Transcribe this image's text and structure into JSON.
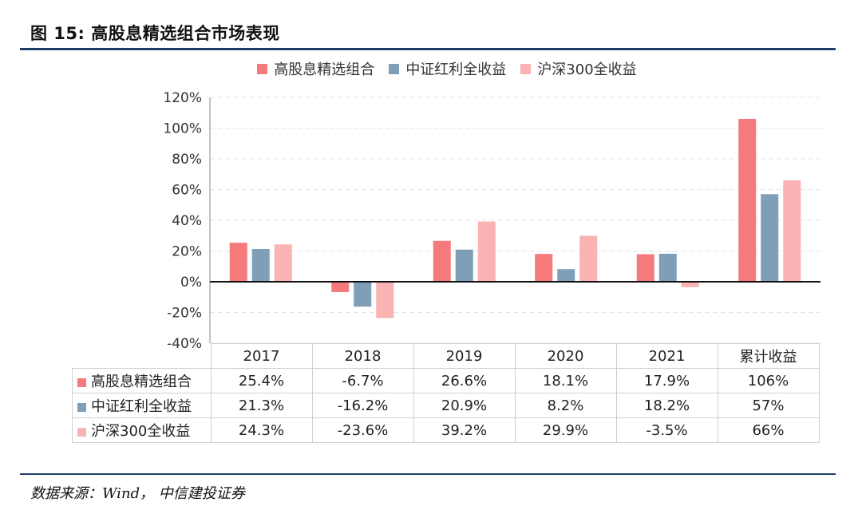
{
  "figure": {
    "title": "图 15:  高股息精选组合市场表现",
    "source": "数据来源：Wind，  中信建投证券"
  },
  "colors": {
    "series_1": "#f47a7c",
    "series_2": "#7f9fb8",
    "series_3": "#f8b3b2",
    "rule": "#1f3f66"
  },
  "chart_data": {
    "type": "bar",
    "categories": [
      "2017",
      "2018",
      "2019",
      "2020",
      "2021",
      "累计收益"
    ],
    "series": [
      {
        "name": "高股息精选组合",
        "values": [
          25.4,
          -6.7,
          26.6,
          18.1,
          17.9,
          106
        ]
      },
      {
        "name": "中证红利全收益",
        "values": [
          21.3,
          -16.2,
          20.9,
          8.2,
          18.2,
          57
        ]
      },
      {
        "name": "沪深300全收益",
        "values": [
          24.3,
          -23.6,
          39.2,
          29.9,
          -3.5,
          66
        ]
      }
    ],
    "ylim": [
      -40,
      120
    ],
    "yticks": [
      "-40%",
      "-20%",
      "0%",
      "20%",
      "40%",
      "60%",
      "80%",
      "100%",
      "120%"
    ],
    "grid": true,
    "legend": "top",
    "table": {
      "rows": [
        {
          "label": "高股息精选组合",
          "cells": [
            "25.4%",
            "-6.7%",
            "26.6%",
            "18.1%",
            "17.9%",
            "106%"
          ]
        },
        {
          "label": "中证红利全收益",
          "cells": [
            "21.3%",
            "-16.2%",
            "20.9%",
            "8.2%",
            "18.2%",
            "57%"
          ]
        },
        {
          "label": "沪深300全收益",
          "cells": [
            "24.3%",
            "-23.6%",
            "39.2%",
            "29.9%",
            "-3.5%",
            "66%"
          ]
        }
      ]
    }
  }
}
